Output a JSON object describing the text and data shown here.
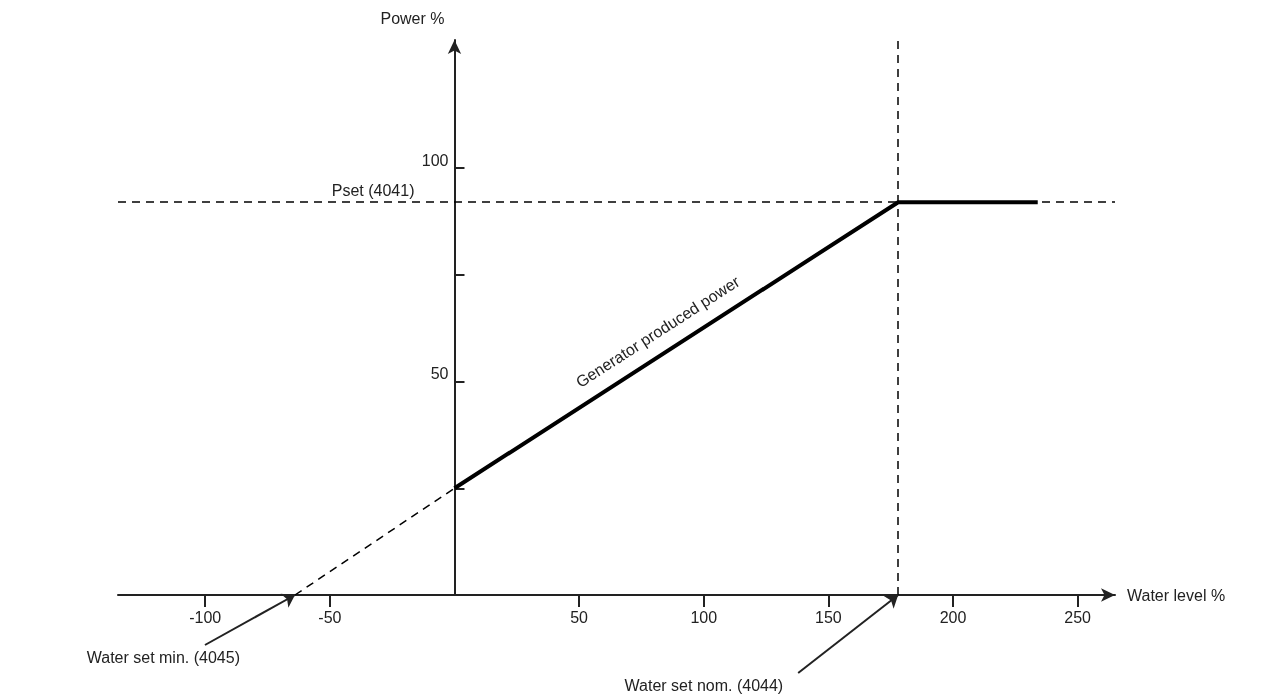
{
  "chart_data": {
    "type": "line",
    "xlabel": "Water level %",
    "ylabel": "Power %",
    "xlim": [
      -135,
      265
    ],
    "xticks": [
      -100,
      -50,
      50,
      100,
      150,
      200,
      250
    ],
    "ylim": [
      0,
      130
    ],
    "yticks": [
      {
        "value": 25,
        "label": null
      },
      50,
      {
        "value": 75,
        "label": null
      },
      100
    ],
    "marker": "none",
    "grid": false,
    "legend": false,
    "series": [
      {
        "name": "Generator produced power",
        "color": "#000000",
        "line_style": "solid",
        "x": [
          0,
          178,
          234
        ],
        "values": [
          25,
          92,
          92
        ]
      },
      {
        "color": "#000000",
        "line_style": "dashed",
        "x": [
          -64,
          0
        ],
        "values": [
          0,
          25
        ]
      }
    ],
    "ref_lines": [
      {
        "axis": "y",
        "value": 92,
        "label": "Pset (4041)",
        "line_style": "dashed"
      },
      {
        "axis": "x",
        "value": 178,
        "line_style": "dashed"
      }
    ],
    "annotations": [
      {
        "text": "Water set min. (4045)",
        "x": -64,
        "y": 0
      },
      {
        "text": "Water set nom. (4044)",
        "x": 178,
        "y": 0
      }
    ]
  }
}
